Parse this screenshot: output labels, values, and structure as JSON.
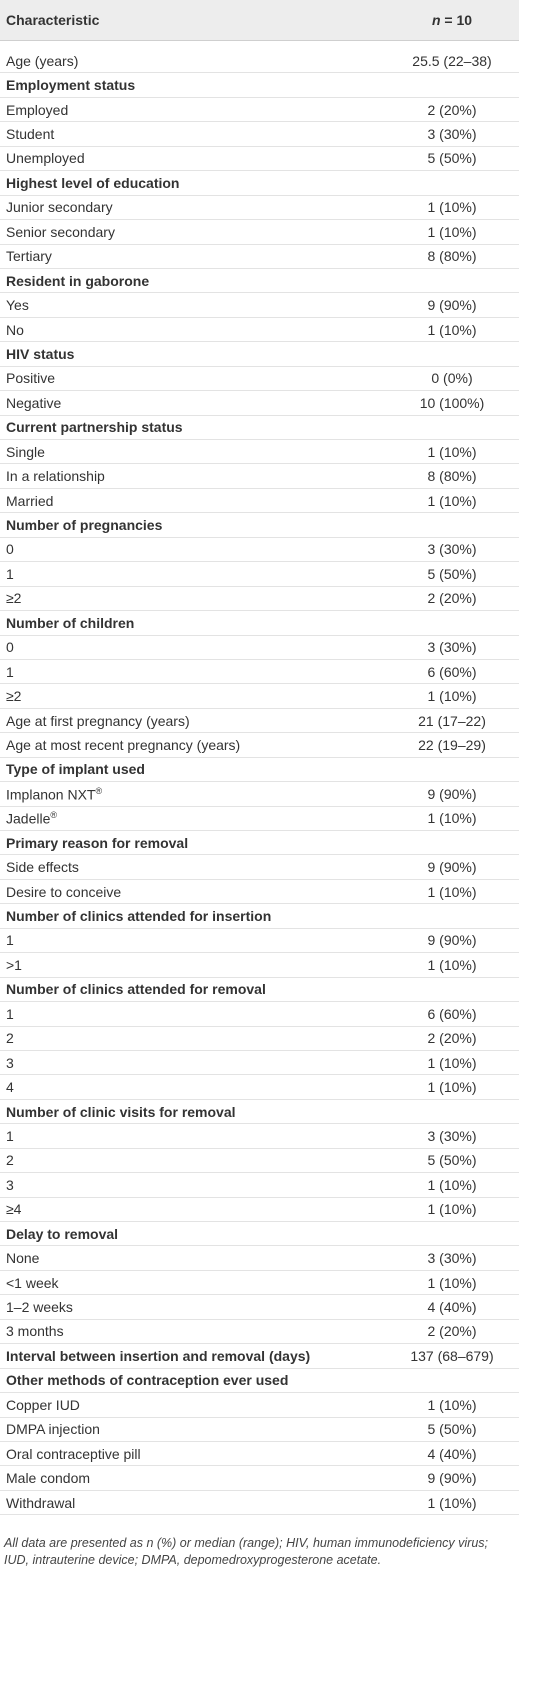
{
  "table": {
    "header": [
      "Characteristic",
      {
        "var": "n",
        "rest": "= 10"
      }
    ],
    "rows": [
      {
        "label": "Age (years)",
        "value": "25.5 (22–38)"
      },
      {
        "label": "Employment status",
        "bold": true
      },
      {
        "label": "Employed",
        "value": "2 (20%)"
      },
      {
        "label": "Student",
        "value": "3 (30%)"
      },
      {
        "label": "Unemployed",
        "value": "5 (50%)"
      },
      {
        "label": "Highest level of education",
        "bold": true
      },
      {
        "label": "Junior secondary",
        "value": "1 (10%)"
      },
      {
        "label": "Senior secondary",
        "value": "1 (10%)"
      },
      {
        "label": "Tertiary",
        "value": "8 (80%)"
      },
      {
        "label": "Resident in gaborone",
        "bold": true
      },
      {
        "label": "Yes",
        "value": "9 (90%)"
      },
      {
        "label": "No",
        "value": "1 (10%)"
      },
      {
        "label": "HIV status",
        "bold": true
      },
      {
        "label": "Positive",
        "value": "0 (0%)"
      },
      {
        "label": "Negative",
        "value": "10 (100%)"
      },
      {
        "label": "Current partnership status",
        "bold": true
      },
      {
        "label": "Single",
        "value": "1 (10%)"
      },
      {
        "label": "In a relationship",
        "value": "8 (80%)"
      },
      {
        "label": "Married",
        "value": "1 (10%)"
      },
      {
        "label": "Number of pregnancies",
        "bold": true
      },
      {
        "label": "0",
        "value": "3 (30%)"
      },
      {
        "label": "1",
        "value": "5 (50%)"
      },
      {
        "label": "≥2",
        "value": "2 (20%)"
      },
      {
        "label": "Number of children",
        "bold": true
      },
      {
        "label": "0",
        "value": "3 (30%)"
      },
      {
        "label": "1",
        "value": "6 (60%)"
      },
      {
        "label": "≥2",
        "value": "1 (10%)"
      },
      {
        "label": "Age at first pregnancy (years)",
        "value": "21 (17–22)"
      },
      {
        "label": "Age at most recent pregnancy (years)",
        "value": "22 (19–29)"
      },
      {
        "label": "Type of implant used",
        "bold": true
      },
      {
        "label": "Implanon NXT",
        "sup": "®",
        "value": "9 (90%)"
      },
      {
        "label": "Jadelle",
        "sup": "®",
        "value": "1 (10%)"
      },
      {
        "label": "Primary reason for removal",
        "bold": true
      },
      {
        "label": "Side effects",
        "value": "9 (90%)"
      },
      {
        "label": "Desire to conceive",
        "value": "1 (10%)"
      },
      {
        "label": "Number of clinics attended for insertion",
        "bold": true
      },
      {
        "label": "1",
        "value": "9 (90%)"
      },
      {
        "label": ">1",
        "value": "1 (10%)"
      },
      {
        "label": "Number of clinics attended for removal",
        "bold": true
      },
      {
        "label": "1",
        "value": "6 (60%)"
      },
      {
        "label": "2",
        "value": "2 (20%)"
      },
      {
        "label": "3",
        "value": "1 (10%)"
      },
      {
        "label": "4",
        "value": "1 (10%)"
      },
      {
        "label": "Number of clinic visits for removal",
        "bold": true
      },
      {
        "label": "1",
        "value": "3 (30%)"
      },
      {
        "label": "2",
        "value": "5 (50%)"
      },
      {
        "label": "3",
        "value": "1 (10%)"
      },
      {
        "label": "≥4",
        "value": "1 (10%)"
      },
      {
        "label": "Delay to removal",
        "bold": true
      },
      {
        "label": "None",
        "value": "3 (30%)"
      },
      {
        "label": "<1 week",
        "value": "1 (10%)"
      },
      {
        "label": "1–2 weeks",
        "value": "4 (40%)"
      },
      {
        "label": "3 months",
        "value": "2 (20%)"
      },
      {
        "label": "Interval between insertion and removal (days)",
        "bold": true,
        "value": "137 (68–679)"
      },
      {
        "label": "Other methods of contraception ever used",
        "bold": true
      },
      {
        "label": "Copper IUD",
        "value": "1 (10%)"
      },
      {
        "label": "DMPA injection",
        "value": "5 (50%)"
      },
      {
        "label": "Oral contraceptive pill",
        "value": "4 (40%)"
      },
      {
        "label": "Male condom",
        "value": "9 (90%)"
      },
      {
        "label": "Withdrawal",
        "value": "1 (10%)"
      }
    ],
    "footnote": "All data are presented as n (%) or median (range); HIV, human immunodeficiency virus; IUD, intrauterine device; DMPA, depomedroxyprogesterone acetate."
  }
}
